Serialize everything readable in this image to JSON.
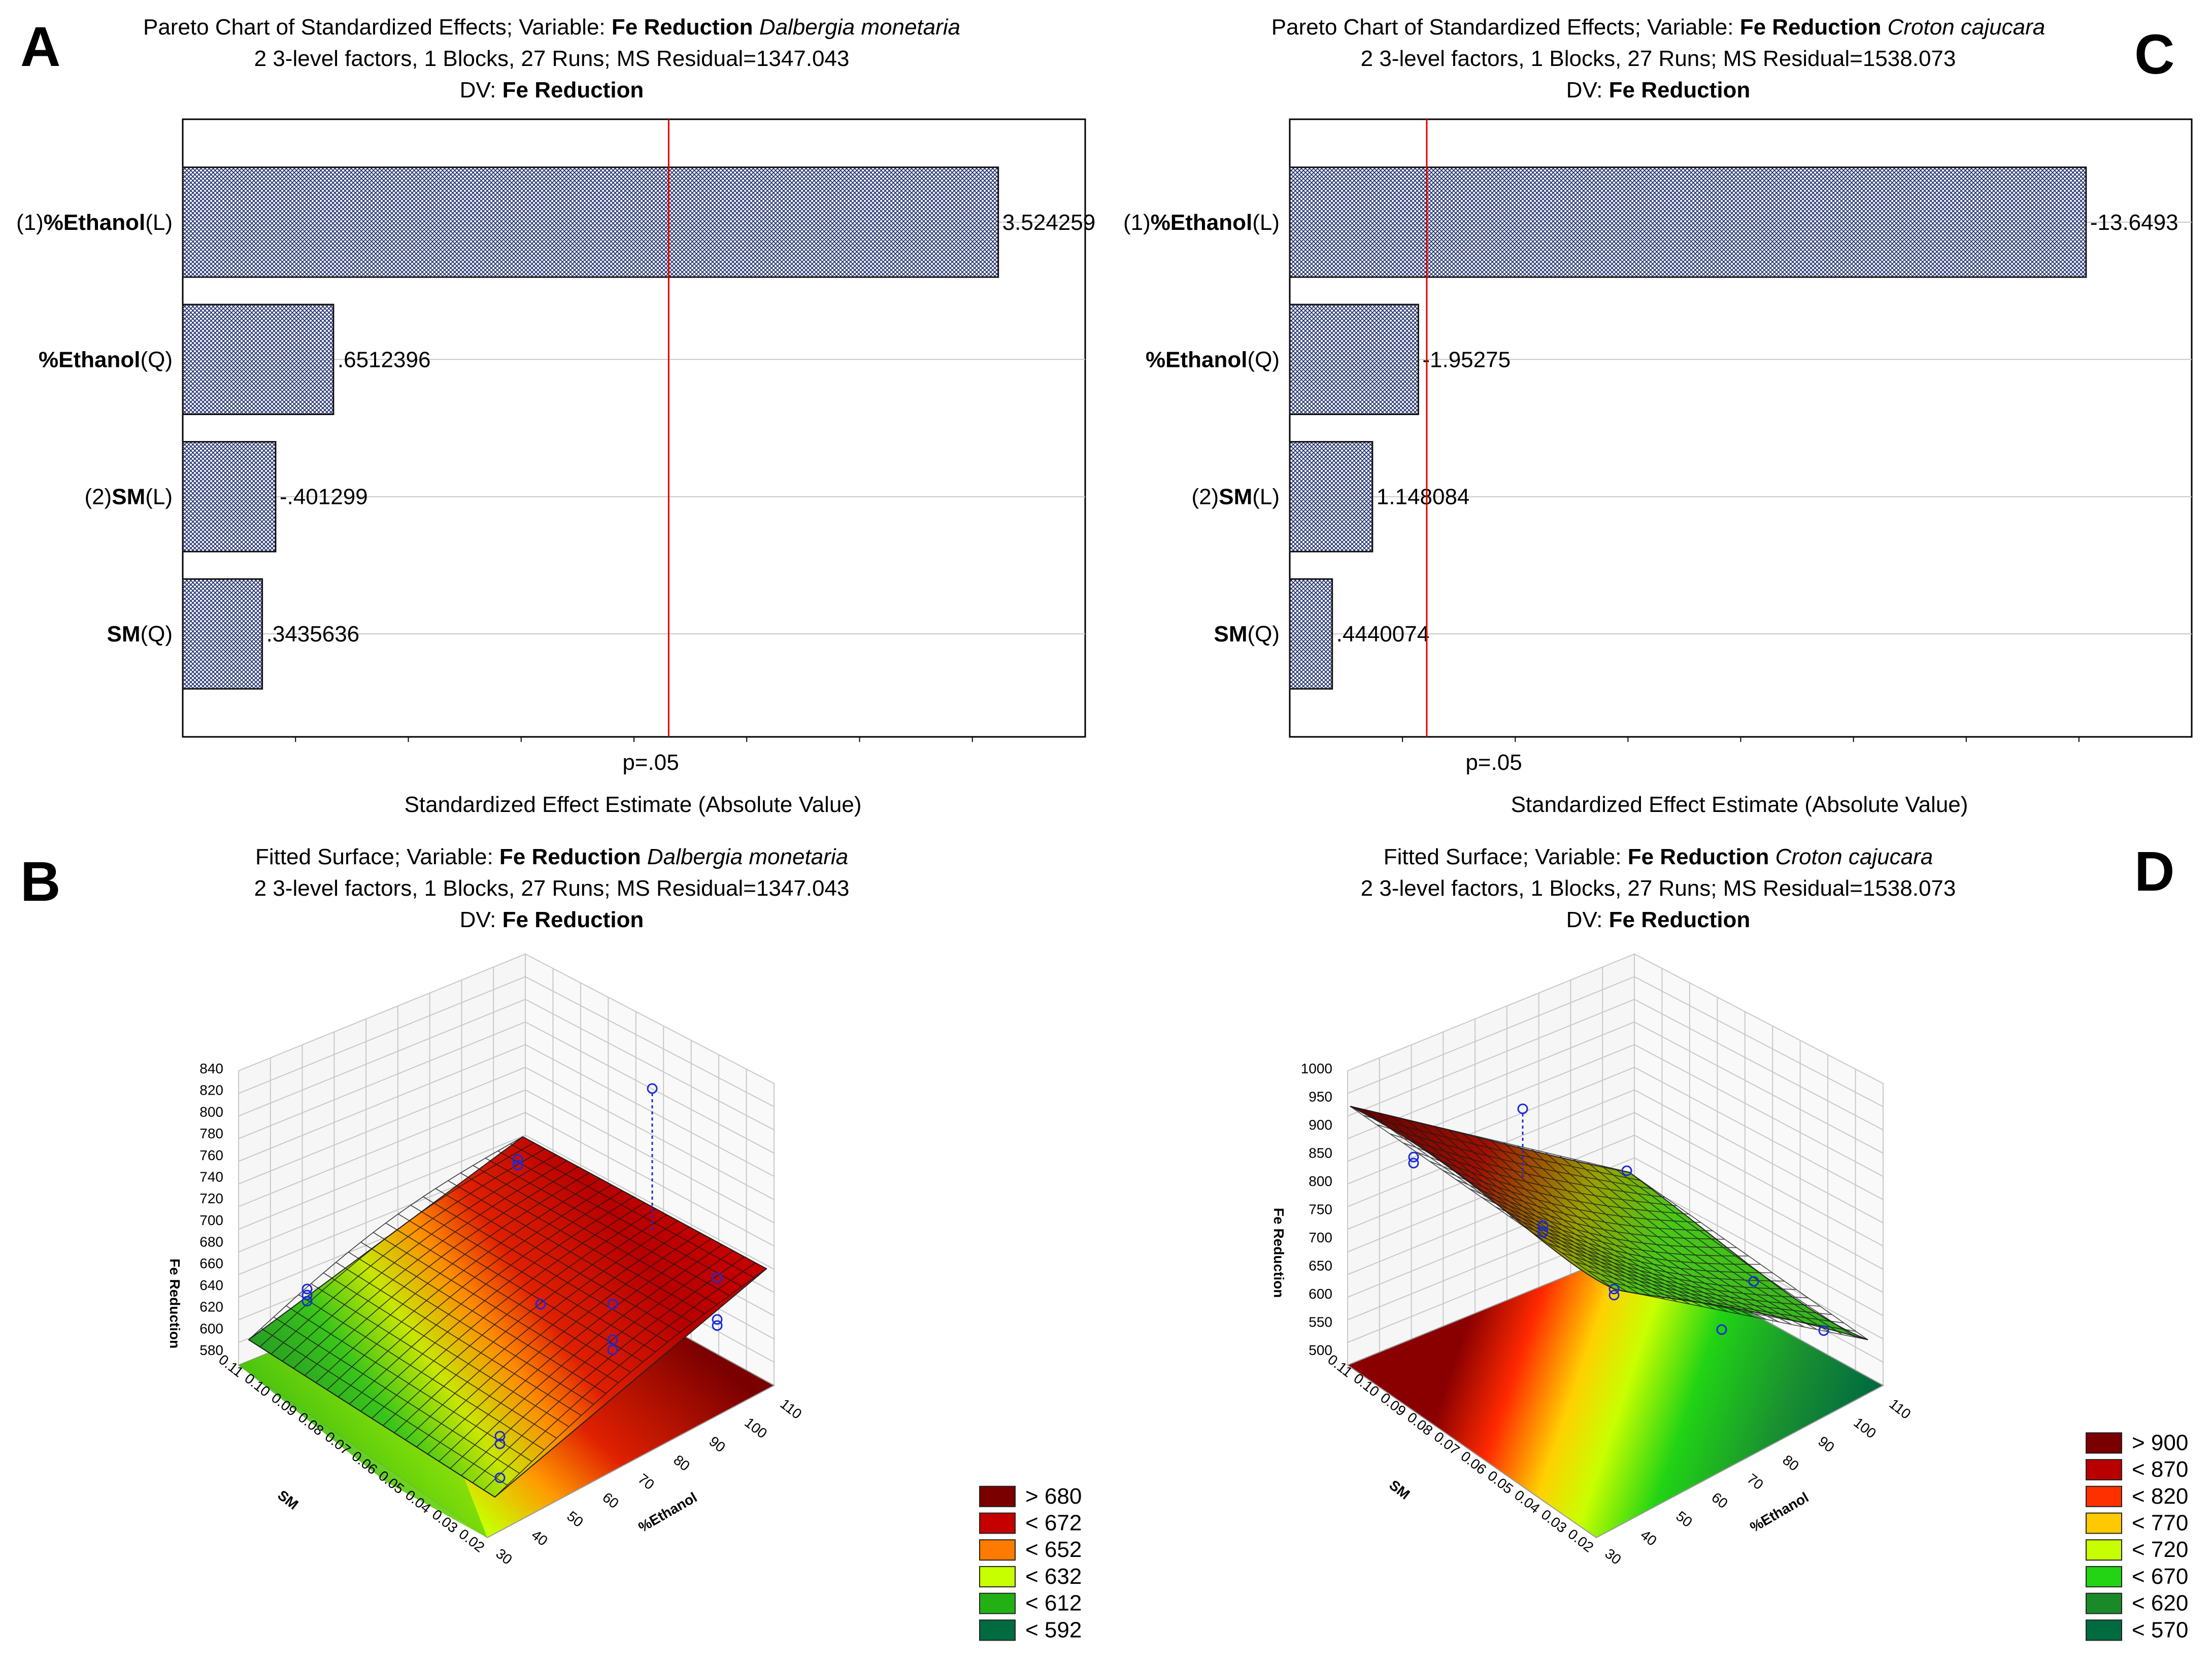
{
  "panel_labels": {
    "A": "A",
    "B": "B",
    "C": "C",
    "D": "D"
  },
  "chart_data": [
    {
      "id": "A",
      "type": "bar",
      "orientation": "horizontal",
      "title_lines": [
        [
          "Pareto Chart of Standardized Effects; Variable: ",
          "Fe Reduction",
          " Dalbergia monetaria"
        ],
        "2 3-level factors, 1 Blocks, 27 Runs; MS Residual=1347.043",
        [
          "DV: ",
          "Fe Reduction"
        ]
      ],
      "categories": [
        {
          "prefix": "(1)",
          "name": "%Ethanol",
          "suffix": "(L)"
        },
        {
          "prefix": "",
          "name": "%Ethanol",
          "suffix": "(Q)"
        },
        {
          "prefix": "(2)",
          "name": "SM",
          "suffix": "(L)"
        },
        {
          "prefix": "",
          "name": "SM",
          "suffix": "(Q)"
        }
      ],
      "values": [
        3.524259,
        0.6512396,
        0.401299,
        0.3435636
      ],
      "value_labels": [
        "3.524259",
        ".6512396",
        "-.401299",
        ".3435636"
      ],
      "threshold": 2.1,
      "threshold_label": "p=.05",
      "xlim": [
        0,
        3.9
      ],
      "xlabel": "Standardized Effect Estimate (Absolute Value)"
    },
    {
      "id": "C",
      "type": "bar",
      "orientation": "horizontal",
      "title_lines": [
        [
          "Pareto Chart of Standardized Effects; Variable: ",
          "Fe Reduction",
          " Croton cajucara"
        ],
        "2 3-level factors, 1 Blocks, 27 Runs; MS Residual=1538.073",
        [
          "DV: ",
          "Fe Reduction"
        ]
      ],
      "categories": [
        {
          "prefix": "(1)",
          "name": "%Ethanol",
          "suffix": "(L)"
        },
        {
          "prefix": "",
          "name": "%Ethanol",
          "suffix": "(Q)"
        },
        {
          "prefix": "(2)",
          "name": "SM",
          "suffix": "(L)"
        },
        {
          "prefix": "",
          "name": "SM",
          "suffix": "(Q)"
        }
      ],
      "values": [
        13.6493,
        1.95275,
        1.148084,
        0.4440074
      ],
      "value_labels": [
        "-13.6493",
        "-1.95275",
        "1.148084",
        ".4440074"
      ],
      "threshold": 2.1,
      "threshold_label": "p=.05",
      "xlim": [
        -0.3,
        15.5
      ],
      "xlabel": "Standardized Effect Estimate (Absolute Value)"
    },
    {
      "id": "B",
      "type": "surface",
      "title_lines": [
        [
          "Fitted Surface; Variable: ",
          "Fe Reduction",
          " Dalbergia monetaria"
        ],
        "2 3-level factors, 1 Blocks, 27 Runs; MS Residual=1347.043",
        [
          "DV: ",
          "Fe Reduction"
        ]
      ],
      "z_label": "Fe Reduction",
      "x_label": "%Ethanol",
      "y_label": "SM",
      "z_ticks": [
        "580",
        "600",
        "620",
        "640",
        "660",
        "680",
        "700",
        "720",
        "740",
        "760",
        "780",
        "800",
        "820",
        "840"
      ],
      "x_ticks": [
        "30",
        "40",
        "50",
        "60",
        "70",
        "80",
        "90",
        "100",
        "110"
      ],
      "y_ticks": [
        "0.02",
        "0.03",
        "0.04",
        "0.05",
        "0.06",
        "0.07",
        "0.08",
        "0.09",
        "0.10",
        "0.11"
      ],
      "legend": [
        {
          "label": "> 680",
          "color": "#7a0000"
        },
        {
          "label": "< 672",
          "color": "#c40000"
        },
        {
          "label": "< 652",
          "color": "#ff7a00"
        },
        {
          "label": "< 632",
          "color": "#c8ff00"
        },
        {
          "label": "< 612",
          "color": "#22b014"
        },
        {
          "label": "< 592",
          "color": "#006a40"
        }
      ]
    },
    {
      "id": "D",
      "type": "surface",
      "title_lines": [
        [
          "Fitted Surface; Variable: ",
          "Fe Reduction",
          " Croton cajucara"
        ],
        "2 3-level factors, 1 Blocks, 27 Runs; MS Residual=1538.073",
        [
          "DV: ",
          "Fe Reduction"
        ]
      ],
      "z_label": "Fe Reduction",
      "x_label": "%Ethanol",
      "y_label": "SM",
      "z_ticks": [
        "500",
        "550",
        "600",
        "650",
        "700",
        "750",
        "800",
        "850",
        "900",
        "950",
        "1000"
      ],
      "x_ticks": [
        "30",
        "40",
        "50",
        "60",
        "70",
        "80",
        "90",
        "100",
        "110"
      ],
      "y_ticks": [
        "0.02",
        "0.03",
        "0.04",
        "0.05",
        "0.06",
        "0.07",
        "0.08",
        "0.09",
        "0.10",
        "0.11"
      ],
      "legend": [
        {
          "label": "> 900",
          "color": "#7a0000"
        },
        {
          "label": "< 870",
          "color": "#b80000"
        },
        {
          "label": "< 820",
          "color": "#ff3000"
        },
        {
          "label": "< 770",
          "color": "#ffc800"
        },
        {
          "label": "< 720",
          "color": "#c8ff00"
        },
        {
          "label": "< 670",
          "color": "#22d414"
        },
        {
          "label": "< 620",
          "color": "#1a8a28"
        },
        {
          "label": "< 570",
          "color": "#006a40"
        }
      ]
    }
  ]
}
